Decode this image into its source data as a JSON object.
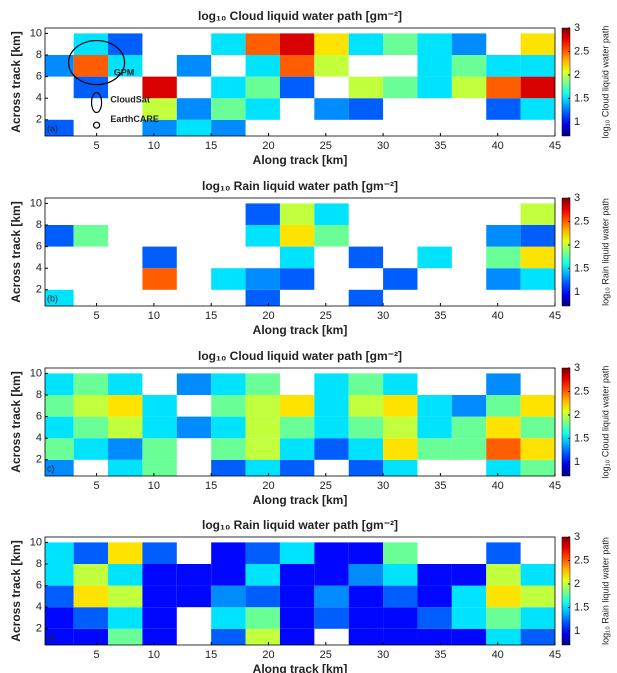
{
  "chart_data": [
    {
      "type": "heatmap",
      "title": "log₁₀ Cloud liquid water path [gm⁻²]",
      "xlabel": "Along track [km]",
      "ylabel": "Across track [km]",
      "panel_label": "(a)",
      "colorbar_label": "log₁₀ Cloud liquid water path",
      "colormap": "jet",
      "annotations": [
        "GPM",
        "CloudSat",
        "EarthCARE"
      ],
      "xlim": [
        0.5,
        45
      ],
      "xticks": [
        5,
        10,
        15,
        20,
        25,
        30,
        35,
        40,
        45
      ],
      "ylim": [
        0.5,
        10.5
      ],
      "yticks": [
        2,
        4,
        6,
        8,
        10
      ],
      "clim": [
        0.7,
        3
      ],
      "cticks": [
        1,
        1.5,
        2,
        2.5,
        3
      ],
      "x": [
        1.5,
        4.5,
        7.5,
        10.5,
        13.5,
        16.5,
        19.5,
        22.5,
        25.5,
        28.5,
        31.5,
        34.5,
        37.5,
        40.5,
        43.5
      ],
      "y": [
        1,
        3,
        5,
        7,
        9
      ],
      "values": [
        [
          1.2,
          null,
          null,
          1.3,
          1.5,
          1.3,
          null,
          null,
          null,
          null,
          null,
          null,
          null,
          null,
          null
        ],
        [
          null,
          null,
          null,
          2.0,
          1.3,
          1.8,
          1.5,
          null,
          1.3,
          1.2,
          null,
          null,
          null,
          1.2,
          1.5
        ],
        [
          null,
          1.2,
          null,
          2.8,
          null,
          1.5,
          1.8,
          1.2,
          null,
          2.0,
          1.8,
          1.5,
          2.0,
          2.5,
          2.8
        ],
        [
          1.3,
          2.5,
          1.5,
          null,
          1.3,
          null,
          1.5,
          2.5,
          2.0,
          null,
          null,
          1.5,
          1.8,
          1.5,
          1.5
        ],
        [
          null,
          1.5,
          1.2,
          null,
          null,
          1.5,
          2.5,
          2.8,
          2.2,
          1.5,
          1.8,
          1.5,
          1.3,
          null,
          2.2
        ]
      ]
    },
    {
      "type": "heatmap",
      "title": "log₁₀ Rain liquid water path [gm⁻²]",
      "xlabel": "Along track [km]",
      "ylabel": "Across track [km]",
      "panel_label": "(b)",
      "colorbar_label": "log₁₀ Rain liquid water path",
      "colormap": "jet",
      "xlim": [
        0.5,
        45
      ],
      "xticks": [
        5,
        10,
        15,
        20,
        25,
        30,
        35,
        40,
        45
      ],
      "ylim": [
        0.5,
        10.5
      ],
      "yticks": [
        2,
        4,
        6,
        8,
        10
      ],
      "clim": [
        0.7,
        3
      ],
      "cticks": [
        1,
        1.5,
        2,
        2.5,
        3
      ],
      "x": [
        1.5,
        4.5,
        7.5,
        10.5,
        13.5,
        16.5,
        19.5,
        22.5,
        25.5,
        28.5,
        31.5,
        34.5,
        37.5,
        40.5,
        43.5
      ],
      "y": [
        1,
        3,
        5,
        7,
        9
      ],
      "values": [
        [
          1.5,
          null,
          null,
          null,
          null,
          null,
          1.2,
          null,
          null,
          1.2,
          null,
          null,
          null,
          null,
          null
        ],
        [
          null,
          null,
          null,
          2.5,
          null,
          1.5,
          1.3,
          1.2,
          null,
          null,
          1.2,
          null,
          null,
          1.3,
          1.5
        ],
        [
          null,
          null,
          null,
          1.2,
          null,
          null,
          null,
          1.5,
          null,
          1.2,
          null,
          1.5,
          null,
          1.8,
          2.2
        ],
        [
          1.2,
          1.8,
          null,
          null,
          null,
          null,
          1.5,
          2.2,
          1.8,
          null,
          null,
          null,
          null,
          1.3,
          1.2
        ],
        [
          null,
          null,
          null,
          null,
          null,
          null,
          1.2,
          2.0,
          1.5,
          null,
          null,
          null,
          null,
          null,
          2.0
        ]
      ]
    },
    {
      "type": "heatmap",
      "title": "log₁₀ Cloud liquid water path [gm⁻²]",
      "xlabel": "Along track [km]",
      "ylabel": "Across track [km]",
      "panel_label": "c)",
      "colorbar_label": "log₁₀ Cloud liquid water path",
      "colormap": "jet",
      "xlim": [
        0.5,
        45
      ],
      "xticks": [
        5,
        10,
        15,
        20,
        25,
        30,
        35,
        40,
        45
      ],
      "ylim": [
        0.5,
        10.5
      ],
      "yticks": [
        2,
        4,
        6,
        8,
        10
      ],
      "clim": [
        0.7,
        3
      ],
      "cticks": [
        1,
        1.5,
        2,
        2.5,
        3
      ],
      "x": [
        1.5,
        4.5,
        7.5,
        10.5,
        13.5,
        16.5,
        19.5,
        22.5,
        25.5,
        28.5,
        31.5,
        34.5,
        37.5,
        40.5,
        43.5
      ],
      "y": [
        1,
        3,
        5,
        7,
        9
      ],
      "values": [
        [
          1.3,
          null,
          1.5,
          1.8,
          null,
          1.2,
          1.5,
          1.2,
          null,
          1.2,
          1.5,
          null,
          null,
          1.5,
          1.8
        ],
        [
          1.8,
          1.5,
          1.3,
          1.8,
          null,
          1.8,
          2.0,
          1.5,
          1.2,
          1.5,
          2.2,
          1.8,
          1.8,
          2.5,
          2.2
        ],
        [
          1.5,
          1.8,
          2.0,
          1.5,
          1.3,
          1.5,
          2.0,
          1.8,
          1.5,
          1.8,
          2.0,
          1.5,
          1.8,
          2.2,
          1.8
        ],
        [
          1.8,
          2.0,
          2.2,
          1.5,
          null,
          1.8,
          2.0,
          2.2,
          1.5,
          2.0,
          2.2,
          1.5,
          1.3,
          1.8,
          2.2
        ],
        [
          1.5,
          1.8,
          1.5,
          null,
          1.3,
          1.5,
          1.8,
          null,
          1.5,
          1.8,
          1.5,
          null,
          null,
          1.3,
          null
        ]
      ]
    },
    {
      "type": "heatmap",
      "title": "log₁₀ Rain liquid water path [gm⁻²]",
      "xlabel": "Along track [km]",
      "ylabel": "Across track [km]",
      "panel_label": "d)",
      "colorbar_label": "log₁₀ Rain liquid water path",
      "colormap": "jet",
      "xlim": [
        0.5,
        45
      ],
      "xticks": [
        5,
        10,
        15,
        20,
        25,
        30,
        35,
        40,
        45
      ],
      "ylim": [
        0.5,
        10.5
      ],
      "yticks": [
        2,
        4,
        6,
        8,
        10
      ],
      "clim": [
        0.7,
        3
      ],
      "cticks": [
        1,
        1.5,
        2,
        2.5,
        3
      ],
      "x": [
        1.5,
        4.5,
        7.5,
        10.5,
        13.5,
        16.5,
        19.5,
        22.5,
        25.5,
        28.5,
        31.5,
        34.5,
        37.5,
        40.5,
        43.5
      ],
      "y": [
        1,
        3,
        5,
        7,
        9
      ],
      "values": [
        [
          1.0,
          1.0,
          1.8,
          1.0,
          null,
          1.2,
          2.0,
          1.0,
          null,
          1.0,
          1.0,
          1.0,
          1.0,
          1.5,
          1.2
        ],
        [
          1.0,
          1.2,
          1.5,
          1.0,
          null,
          1.5,
          1.8,
          1.0,
          1.2,
          1.0,
          1.0,
          1.2,
          1.5,
          1.8,
          1.5
        ],
        [
          1.2,
          2.2,
          2.0,
          1.0,
          1.0,
          1.3,
          1.2,
          1.0,
          1.3,
          1.0,
          1.2,
          1.0,
          1.5,
          2.2,
          2.0
        ],
        [
          1.5,
          2.0,
          1.5,
          1.0,
          1.0,
          1.0,
          1.5,
          1.0,
          1.0,
          1.3,
          1.5,
          1.0,
          1.0,
          2.0,
          1.5
        ],
        [
          1.5,
          1.2,
          2.2,
          1.2,
          null,
          1.0,
          1.2,
          1.5,
          1.0,
          1.0,
          1.8,
          null,
          null,
          1.2,
          null
        ]
      ]
    }
  ]
}
